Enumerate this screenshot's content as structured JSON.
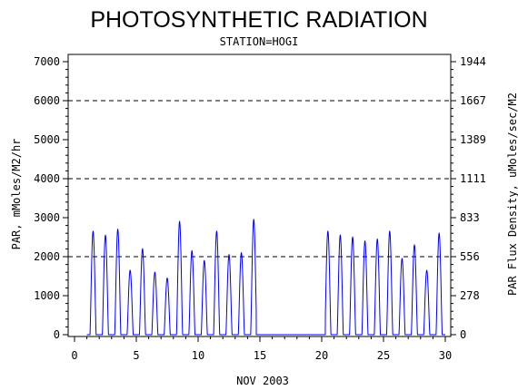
{
  "chart_data": {
    "type": "line",
    "title": "PHOTOSYNTHETIC RADIATION",
    "subtitle": "STATION=HOGI",
    "xlabel": "NOV 2003",
    "ylabel": "PAR, mMoles/M2/hr",
    "y2label": "PAR Flux Density, uMoles/sec/M2",
    "xlim": [
      0,
      30
    ],
    "ylim": [
      0,
      7000
    ],
    "y2lim": [
      0,
      1944
    ],
    "x_ticks": [
      0,
      5,
      10,
      15,
      20,
      25,
      30
    ],
    "x_tick_labels": [
      "0",
      "5",
      "10",
      "15",
      "20",
      "25",
      "30"
    ],
    "y_ticks": [
      0,
      1000,
      2000,
      3000,
      4000,
      5000,
      6000,
      7000
    ],
    "y_tick_labels": [
      "0",
      "1000",
      "2000",
      "3000",
      "4000",
      "5000",
      "6000",
      "7000"
    ],
    "y2_tick_labels": [
      "0",
      "278",
      "556",
      "833",
      "1111",
      "1389",
      "1667",
      "1944"
    ],
    "gridlines_y": [
      2000,
      4000,
      6000
    ],
    "grid_style": "dashed horizontal",
    "series": [
      {
        "color": "#0000ff",
        "daily_peaks": [
          {
            "day": 1,
            "peak": 2650
          },
          {
            "day": 2,
            "peak": 2550
          },
          {
            "day": 3,
            "peak": 2700
          },
          {
            "day": 4,
            "peak": 1650
          },
          {
            "day": 5,
            "peak": 2200
          },
          {
            "day": 6,
            "peak": 1600
          },
          {
            "day": 7,
            "peak": 1450
          },
          {
            "day": 8,
            "peak": 2900
          },
          {
            "day": 9,
            "peak": 2150
          },
          {
            "day": 10,
            "peak": 1900
          },
          {
            "day": 11,
            "peak": 2650
          },
          {
            "day": 12,
            "peak": 2050
          },
          {
            "day": 13,
            "peak": 2100
          },
          {
            "day": 14,
            "peak": 2950
          },
          {
            "day": 20,
            "peak": 2650
          },
          {
            "day": 21,
            "peak": 2550
          },
          {
            "day": 22,
            "peak": 2500
          },
          {
            "day": 23,
            "peak": 2400
          },
          {
            "day": 24,
            "peak": 2450
          },
          {
            "day": 25,
            "peak": 2650
          },
          {
            "day": 26,
            "peak": 1950
          },
          {
            "day": 27,
            "peak": 2300
          },
          {
            "day": 28,
            "peak": 1650
          },
          {
            "day": 29,
            "peak": 2600
          }
        ],
        "missing_data_range": [
          14.7,
          20.3
        ]
      }
    ]
  }
}
